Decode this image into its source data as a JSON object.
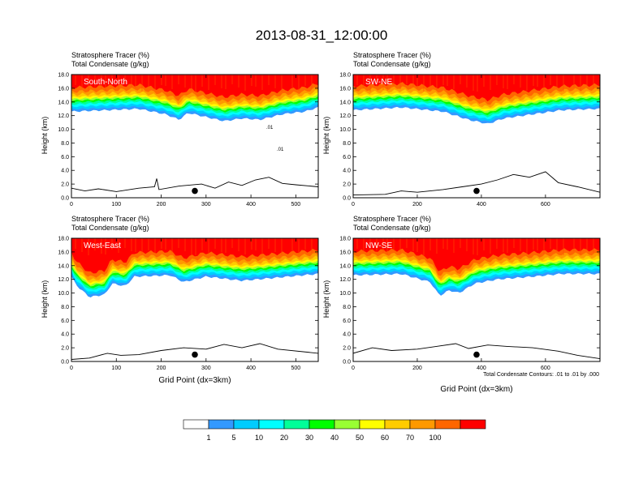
{
  "title": "2013-08-31_12:00:00",
  "panel_header": {
    "line1": "Stratosphere Tracer   (%)",
    "line2": "Total Condensate   (g/kg)"
  },
  "y_axis_label": "Height (km)",
  "x_axis_label": "Grid Point (dx=3km)",
  "contour_note": "Total Condensate Contours: .01 to .01 by .000",
  "colors": {
    "levels": [
      "#ffffff",
      "#3399ff",
      "#00ccff",
      "#00ffff",
      "#00ff99",
      "#00ff00",
      "#99ff33",
      "#ffff00",
      "#ffcc00",
      "#ff9900",
      "#ff6600",
      "#ff0000"
    ],
    "terrain": "#000000"
  },
  "colorbar": {
    "labels": [
      "1",
      "5",
      "10",
      "20",
      "30",
      "40",
      "50",
      "60",
      "70",
      "100"
    ]
  },
  "chart_data": [
    {
      "type": "heatmap",
      "panel_label": "South-North",
      "xlabel": "",
      "ylabel": "Height (km)",
      "xlim": [
        0,
        550
      ],
      "ylim": [
        0,
        18
      ],
      "x_ticks": [
        "0",
        "100",
        "200",
        "300",
        "400",
        "500"
      ],
      "x_tick_values": [
        0,
        100,
        200,
        300,
        400,
        500
      ],
      "y_ticks": [
        "0.0",
        "2.0",
        "4.0",
        "6.0",
        "8.0",
        "10.0",
        "12.0",
        "14.0",
        "16.0",
        "18.0"
      ],
      "tracer_band_base_km": [
        [
          0,
          12.6
        ],
        [
          80,
          12.8
        ],
        [
          150,
          13.0
        ],
        [
          210,
          12.2
        ],
        [
          240,
          11.4
        ],
        [
          260,
          12.4
        ],
        [
          300,
          11.8
        ],
        [
          340,
          11.2
        ],
        [
          380,
          11.6
        ],
        [
          420,
          11.4
        ],
        [
          470,
          12.2
        ],
        [
          520,
          12.6
        ],
        [
          550,
          13.2
        ]
      ],
      "terrain_km": [
        [
          0,
          1.4
        ],
        [
          30,
          1.0
        ],
        [
          60,
          1.3
        ],
        [
          100,
          0.9
        ],
        [
          150,
          1.4
        ],
        [
          185,
          1.6
        ],
        [
          190,
          2.8
        ],
        [
          195,
          1.2
        ],
        [
          240,
          1.7
        ],
        [
          290,
          2.0
        ],
        [
          320,
          1.4
        ],
        [
          350,
          2.3
        ],
        [
          380,
          1.8
        ],
        [
          410,
          2.6
        ],
        [
          440,
          3.0
        ],
        [
          470,
          2.1
        ],
        [
          500,
          1.9
        ],
        [
          550,
          1.6
        ]
      ],
      "marker_x": 275,
      "marker_y_km": 1.0,
      "contour_labels": [
        ".01",
        ".01"
      ]
    },
    {
      "type": "heatmap",
      "panel_label": "SW-NE",
      "xlabel": "",
      "ylabel": "Height (km)",
      "xlim": [
        0,
        770
      ],
      "ylim": [
        0,
        18
      ],
      "x_ticks": [
        "0",
        "200",
        "400",
        "600"
      ],
      "x_tick_values": [
        0,
        200,
        400,
        600
      ],
      "y_ticks": [
        "0.0",
        "2.0",
        "4.0",
        "6.0",
        "8.0",
        "10.0",
        "12.0",
        "14.0",
        "16.0",
        "18.0"
      ],
      "tracer_band_base_km": [
        [
          0,
          12.8
        ],
        [
          150,
          13.2
        ],
        [
          280,
          12.6
        ],
        [
          360,
          11.4
        ],
        [
          420,
          10.8
        ],
        [
          470,
          11.6
        ],
        [
          560,
          12.2
        ],
        [
          650,
          12.8
        ],
        [
          770,
          13.0
        ]
      ],
      "terrain_km": [
        [
          0,
          0.4
        ],
        [
          100,
          0.5
        ],
        [
          150,
          1.0
        ],
        [
          200,
          0.8
        ],
        [
          280,
          1.2
        ],
        [
          340,
          1.6
        ],
        [
          400,
          2.0
        ],
        [
          450,
          2.6
        ],
        [
          500,
          3.4
        ],
        [
          550,
          3.0
        ],
        [
          600,
          3.8
        ],
        [
          640,
          2.2
        ],
        [
          700,
          1.6
        ],
        [
          770,
          0.8
        ]
      ],
      "marker_x": 385,
      "marker_y_km": 1.0
    },
    {
      "type": "heatmap",
      "panel_label": "West-East",
      "xlabel": "Grid Point (dx=3km)",
      "ylabel": "Height (km)",
      "xlim": [
        0,
        550
      ],
      "ylim": [
        0,
        18
      ],
      "x_ticks": [
        "0",
        "100",
        "200",
        "300",
        "400",
        "500"
      ],
      "x_tick_values": [
        0,
        100,
        200,
        300,
        400,
        500
      ],
      "y_ticks": [
        "0.0",
        "2.0",
        "4.0",
        "6.0",
        "8.0",
        "10.0",
        "12.0",
        "14.0",
        "16.0",
        "18.0"
      ],
      "tracer_band_base_km": [
        [
          0,
          12.4
        ],
        [
          10,
          11.2
        ],
        [
          40,
          9.4
        ],
        [
          75,
          9.8
        ],
        [
          90,
          11.4
        ],
        [
          120,
          11.0
        ],
        [
          140,
          12.4
        ],
        [
          220,
          12.6
        ],
        [
          250,
          11.6
        ],
        [
          300,
          12.4
        ],
        [
          380,
          11.8
        ],
        [
          450,
          12.2
        ],
        [
          550,
          12.8
        ]
      ],
      "terrain_km": [
        [
          0,
          0.3
        ],
        [
          40,
          0.5
        ],
        [
          80,
          1.2
        ],
        [
          110,
          0.9
        ],
        [
          150,
          1.0
        ],
        [
          200,
          1.6
        ],
        [
          250,
          2.0
        ],
        [
          300,
          1.8
        ],
        [
          340,
          2.5
        ],
        [
          380,
          2.0
        ],
        [
          420,
          2.6
        ],
        [
          460,
          1.8
        ],
        [
          550,
          1.2
        ]
      ],
      "marker_x": 275,
      "marker_y_km": 1.0
    },
    {
      "type": "heatmap",
      "panel_label": "NW-SE",
      "xlabel": "Grid Point (dx=3km)",
      "ylabel": "Height (km)",
      "xlim": [
        0,
        770
      ],
      "ylim": [
        0,
        18
      ],
      "x_ticks": [
        "0",
        "200",
        "400",
        "600"
      ],
      "x_tick_values": [
        0,
        200,
        400,
        600
      ],
      "y_ticks": [
        "0.0",
        "2.0",
        "4.0",
        "6.0",
        "8.0",
        "10.0",
        "12.0",
        "14.0",
        "16.0",
        "18.0"
      ],
      "tracer_band_base_km": [
        [
          0,
          12.6
        ],
        [
          150,
          12.8
        ],
        [
          240,
          11.6
        ],
        [
          270,
          9.6
        ],
        [
          300,
          10.4
        ],
        [
          330,
          10.0
        ],
        [
          380,
          11.4
        ],
        [
          450,
          12.0
        ],
        [
          560,
          12.4
        ],
        [
          650,
          12.8
        ],
        [
          770,
          12.8
        ]
      ],
      "terrain_km": [
        [
          0,
          1.2
        ],
        [
          60,
          2.0
        ],
        [
          120,
          1.6
        ],
        [
          200,
          1.8
        ],
        [
          260,
          2.2
        ],
        [
          320,
          2.6
        ],
        [
          360,
          1.9
        ],
        [
          420,
          2.4
        ],
        [
          480,
          2.2
        ],
        [
          560,
          2.0
        ],
        [
          640,
          1.5
        ],
        [
          700,
          0.9
        ],
        [
          770,
          0.4
        ]
      ],
      "marker_x": 385,
      "marker_y_km": 1.0
    }
  ]
}
